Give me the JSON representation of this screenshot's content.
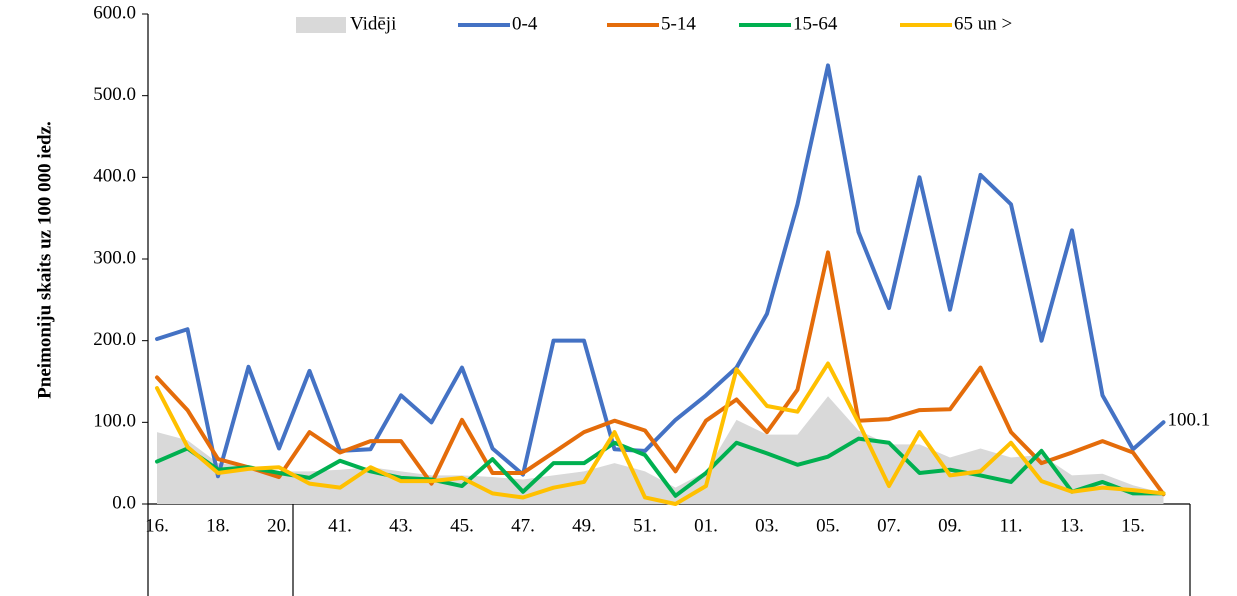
{
  "chart_data": {
    "type": "line",
    "y_label": "Pneimoniju skaits uz 100 000 iedz.",
    "categories": [
      "16.",
      null,
      "18.",
      null,
      "20.",
      null,
      "41.",
      null,
      "43.",
      null,
      "45.",
      null,
      "47.",
      null,
      "49.",
      null,
      "51.",
      null,
      "01.",
      null,
      "03.",
      null,
      "05.",
      null,
      "07.",
      null,
      "09.",
      null,
      "11.",
      null,
      "13.",
      null,
      "15.",
      null
    ],
    "series": [
      {
        "name": "Vidēji",
        "kind": "area",
        "color": "#d9d9d9",
        "values": [
          88,
          78,
          50,
          47,
          40,
          40,
          42,
          45,
          40,
          35,
          35,
          33,
          30,
          35,
          40,
          50,
          40,
          20,
          40,
          103,
          85,
          85,
          132,
          90,
          73,
          73,
          57,
          68,
          57,
          60,
          35,
          37,
          23,
          13
        ]
      },
      {
        "name": "0-4",
        "color": "#4472c4",
        "values": [
          202,
          214,
          34,
          168,
          68,
          163,
          65,
          67,
          133,
          100,
          167,
          68,
          36,
          200,
          200,
          67,
          65,
          103,
          133,
          167,
          233,
          367,
          537,
          333,
          240,
          400,
          238,
          403,
          367,
          200,
          335,
          133,
          67,
          100.1
        ],
        "value_labels": [
          null,
          null,
          null,
          null,
          null,
          null,
          null,
          null,
          null,
          null,
          null,
          null,
          null,
          null,
          null,
          null,
          null,
          null,
          null,
          null,
          null,
          null,
          null,
          null,
          null,
          null,
          null,
          null,
          null,
          null,
          null,
          null,
          null,
          "100.1"
        ]
      },
      {
        "name": "5-14",
        "color": "#e46c0a",
        "values": [
          155,
          115,
          55,
          45,
          33,
          88,
          63,
          77,
          77,
          25,
          103,
          38,
          38,
          63,
          88,
          102,
          90,
          40,
          102,
          128,
          88,
          140,
          308,
          102,
          104,
          115,
          116,
          167,
          88,
          50,
          63,
          77,
          63,
          12
        ]
      },
      {
        "name": "15-64",
        "color": "#00b050",
        "values": [
          52,
          68,
          42,
          45,
          38,
          32,
          53,
          40,
          32,
          30,
          22,
          55,
          15,
          50,
          50,
          75,
          60,
          10,
          38,
          75,
          62,
          48,
          58,
          80,
          75,
          38,
          42,
          35,
          27,
          65,
          15,
          27,
          13,
          13
        ]
      },
      {
        "name": "65 un >",
        "color": "#ffc000",
        "values": [
          142,
          70,
          38,
          43,
          45,
          25,
          20,
          45,
          28,
          28,
          32,
          13,
          8,
          20,
          27,
          88,
          8,
          0,
          22,
          165,
          120,
          113,
          172,
          100,
          22,
          88,
          35,
          40,
          75,
          28,
          15,
          20,
          17,
          13
        ]
      }
    ],
    "ylim": [
      0,
      600
    ],
    "yticks": [
      {
        "value": 0,
        "label": "0.0"
      },
      {
        "value": 100,
        "label": "100.0"
      },
      {
        "value": 200,
        "label": "200.0"
      },
      {
        "value": 300,
        "label": "300.0"
      },
      {
        "value": 400,
        "label": "400.0"
      },
      {
        "value": 500,
        "label": "500.0"
      },
      {
        "value": 600,
        "label": "600.0"
      }
    ],
    "grid": false,
    "legend": "top"
  }
}
